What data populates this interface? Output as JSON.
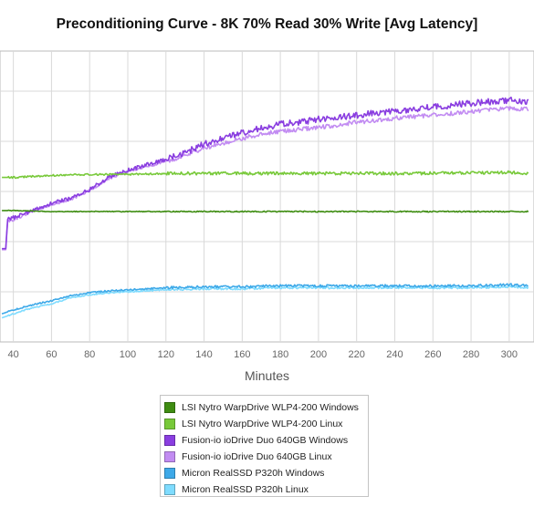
{
  "chart_data": {
    "type": "line",
    "title": "Preconditioning Curve - 8K 70% Read 30% Write [Avg Latency]",
    "xlabel": "Minutes",
    "ylabel": "",
    "x_ticks": [
      40,
      60,
      80,
      100,
      120,
      140,
      160,
      180,
      200,
      220,
      240,
      260,
      280,
      300
    ],
    "grid": true,
    "legend_position": "bottom",
    "series": [
      {
        "name": "LSI Nytro WarpDrive WLP4-200 Windows",
        "color": "#3f8d12",
        "x": [
          34,
          40,
          60,
          80,
          100,
          150,
          200,
          250,
          300,
          310
        ],
        "y": [
          0.219,
          0.219,
          0.22,
          0.22,
          0.22,
          0.22,
          0.22,
          0.22,
          0.22,
          0.22
        ]
      },
      {
        "name": "LSI Nytro WarpDrive WLP4-200 Linux",
        "color": "#78c93a",
        "x": [
          34,
          40,
          60,
          80,
          100,
          120,
          150,
          200,
          250,
          300,
          310
        ],
        "y": [
          0.186,
          0.186,
          0.184,
          0.183,
          0.183,
          0.182,
          0.182,
          0.182,
          0.182,
          0.181,
          0.182
        ]
      },
      {
        "name": "Fusion-io ioDrive Duo 640GB Windows",
        "color": "#8a3ee0",
        "x": [
          34,
          36,
          37,
          40,
          50,
          60,
          70,
          80,
          90,
          100,
          110,
          120,
          130,
          140,
          150,
          160,
          170,
          180,
          190,
          200,
          220,
          240,
          260,
          280,
          300,
          310
        ],
        "y": [
          0.257,
          0.257,
          0.228,
          0.226,
          0.219,
          0.212,
          0.207,
          0.198,
          0.186,
          0.179,
          0.173,
          0.168,
          0.161,
          0.153,
          0.147,
          0.141,
          0.137,
          0.133,
          0.131,
          0.128,
          0.124,
          0.12,
          0.116,
          0.112,
          0.109,
          0.11
        ]
      },
      {
        "name": "Fusion-io ioDrive Duo 640GB Linux",
        "color": "#c28cf2",
        "x": [
          34,
          36,
          37,
          40,
          50,
          60,
          70,
          80,
          90,
          100,
          110,
          120,
          130,
          140,
          150,
          160,
          170,
          180,
          190,
          200,
          220,
          240,
          260,
          280,
          300,
          310
        ],
        "y": [
          0.258,
          0.258,
          0.23,
          0.228,
          0.22,
          0.213,
          0.208,
          0.199,
          0.187,
          0.18,
          0.175,
          0.17,
          0.164,
          0.157,
          0.152,
          0.147,
          0.143,
          0.14,
          0.138,
          0.136,
          0.131,
          0.127,
          0.124,
          0.12,
          0.117,
          0.118
        ]
      },
      {
        "name": "Micron RealSSD P320h Windows",
        "color": "#3ea9e8",
        "x": [
          34,
          40,
          50,
          60,
          70,
          80,
          90,
          100,
          110,
          120,
          140,
          160,
          180,
          200,
          220,
          240,
          260,
          280,
          300,
          310
        ],
        "y": [
          0.322,
          0.318,
          0.313,
          0.309,
          0.304,
          0.301,
          0.299,
          0.298,
          0.297,
          0.296,
          0.295,
          0.295,
          0.294,
          0.294,
          0.294,
          0.294,
          0.294,
          0.294,
          0.293,
          0.294
        ]
      },
      {
        "name": "Micron RealSSD P320h Linux",
        "color": "#7fdcff",
        "x": [
          34,
          40,
          50,
          60,
          70,
          80,
          90,
          100,
          110,
          120,
          140,
          160,
          180,
          200,
          220,
          240,
          260,
          280,
          300,
          310
        ],
        "y": [
          0.326,
          0.322,
          0.316,
          0.312,
          0.306,
          0.303,
          0.301,
          0.3,
          0.299,
          0.298,
          0.297,
          0.297,
          0.296,
          0.296,
          0.296,
          0.296,
          0.296,
          0.296,
          0.295,
          0.296
        ]
      }
    ]
  }
}
